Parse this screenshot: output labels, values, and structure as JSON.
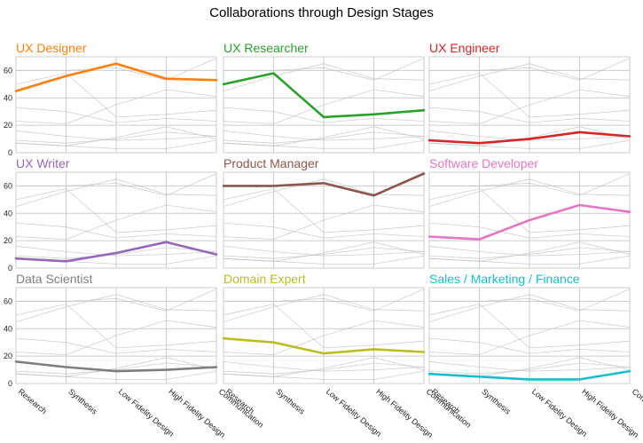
{
  "chart_data": {
    "type": "line",
    "title": "Collaborations through Design Stages",
    "x": [
      "Research",
      "Synthesis",
      "Low Fidelity Design",
      "High Fidelity Design",
      "Communication"
    ],
    "ylim": [
      0,
      70
    ],
    "yticks": [
      0,
      20,
      40,
      60
    ],
    "background_color": "#bfbfbf",
    "grid_color": "#cccccc",
    "series": [
      {
        "name": "UX Designer",
        "color": "#ff7f0e",
        "values": [
          45,
          56,
          65,
          54,
          53
        ]
      },
      {
        "name": "UX Researcher",
        "color": "#2ca02c",
        "values": [
          50,
          58,
          26,
          28,
          31
        ]
      },
      {
        "name": "UX Engineer",
        "color": "#d62728",
        "values": [
          9,
          7,
          10,
          15,
          12
        ]
      },
      {
        "name": "UX Writer",
        "color": "#9467bd",
        "values": [
          7,
          5,
          11,
          19,
          10
        ]
      },
      {
        "name": "Product Manager",
        "color": "#8c564b",
        "values": [
          60,
          60,
          62,
          53,
          69
        ]
      },
      {
        "name": "Software Developer",
        "color": "#e377c2",
        "values": [
          23,
          21,
          35,
          46,
          41
        ]
      },
      {
        "name": "Data Scientist",
        "color": "#7f7f7f",
        "values": [
          16,
          12,
          9,
          10,
          12
        ]
      },
      {
        "name": "Domain Expert",
        "color": "#bcbd22",
        "values": [
          33,
          30,
          22,
          25,
          23
        ]
      },
      {
        "name": "Sales / Marketing / Finance",
        "color": "#17becf",
        "values": [
          7,
          5,
          3,
          3,
          9
        ]
      }
    ]
  }
}
